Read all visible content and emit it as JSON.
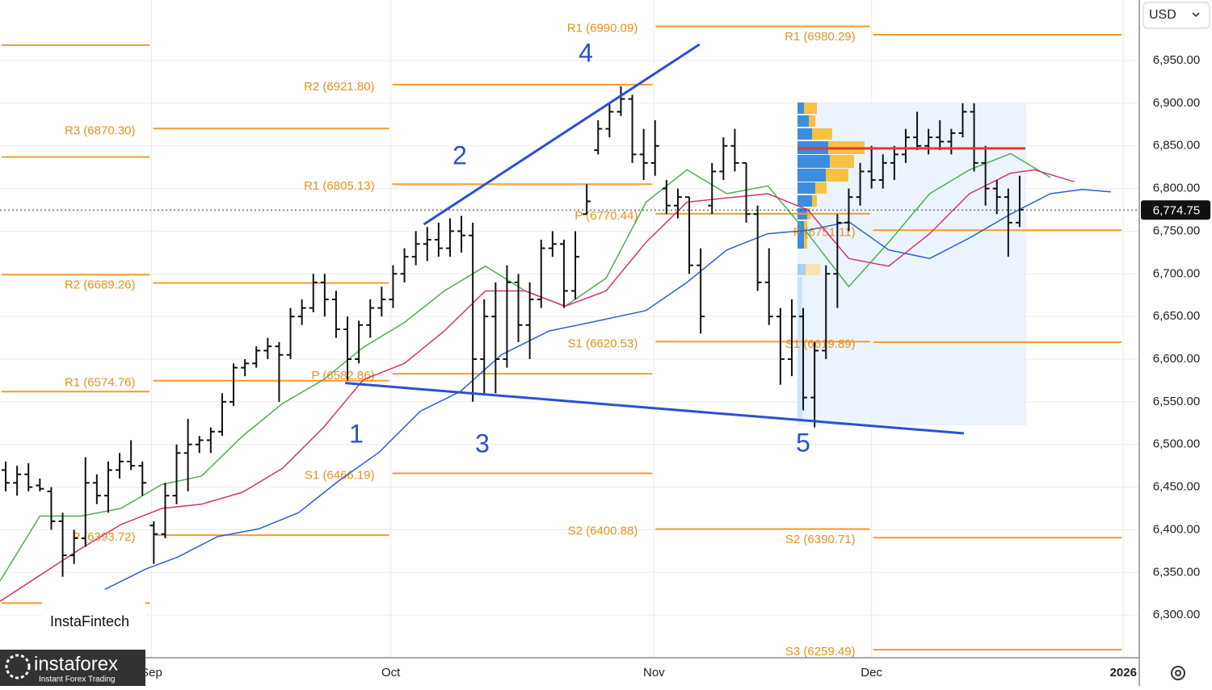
{
  "chart_data": {
    "type": "ohlc",
    "currency": "USD",
    "xlim": [
      0,
      100
    ],
    "ylim": [
      6250,
      7021
    ],
    "xticks": [
      {
        "value": 13.3,
        "label": "Sep"
      },
      {
        "value": 34.3,
        "label": "Oct"
      },
      {
        "value": 57.4,
        "label": "Nov"
      },
      {
        "value": 76.5,
        "label": "Dec"
      },
      {
        "value": 98.6,
        "label": "2026"
      }
    ],
    "yticks": [
      {
        "value": 6300,
        "label": "6,300.00"
      },
      {
        "value": 6350,
        "label": "6,350.00"
      },
      {
        "value": 6400,
        "label": "6,400.00"
      },
      {
        "value": 6450,
        "label": "6,450.00"
      },
      {
        "value": 6500,
        "label": "6,500.00"
      },
      {
        "value": 6550,
        "label": "6,550.00"
      },
      {
        "value": 6600,
        "label": "6,600.00"
      },
      {
        "value": 6650,
        "label": "6,650.00"
      },
      {
        "value": 6700,
        "label": "6,700.00"
      },
      {
        "value": 6750,
        "label": "6,750.00"
      },
      {
        "value": 6800,
        "label": "6,800.00"
      },
      {
        "value": 6850,
        "label": "6,850.00"
      },
      {
        "value": 6900,
        "label": "6,900.00"
      },
      {
        "value": 6950,
        "label": "6,950.00"
      }
    ],
    "grid": true,
    "last_price": {
      "value": 6774.75,
      "label": "6,774.75"
    },
    "series": [
      {
        "color": "#111111",
        "x": [
          0.5,
          1.5,
          2.5,
          3.5,
          4.5,
          5.5,
          6.5,
          7.5,
          8.5,
          9.5,
          10.5,
          11.5,
          12.5,
          13.5,
          14.5,
          15.5,
          16.5,
          17.5,
          18.5,
          19.5,
          20.5,
          21.5,
          22.5,
          23.5,
          24.5,
          25.5,
          26.5,
          27.5,
          28.5,
          29.5,
          30.5,
          31.5,
          32.5,
          33.5,
          34.5,
          35.5,
          36.5,
          37.5,
          38.5,
          39.5,
          40.5,
          41.5,
          42.5,
          43.5,
          44.5,
          45.5,
          46.5,
          47.5,
          48.5,
          49.5,
          50.5,
          51.5,
          52.5,
          53.5,
          54.5,
          55.5,
          56.5,
          57.5,
          58.5,
          59.5,
          60.5,
          61.5,
          62.5,
          63.5,
          64.5,
          65.5,
          66.5,
          67.5,
          68.5,
          69.5,
          70.5,
          71.5,
          72.5,
          73.5,
          74.5,
          75.5,
          76.5,
          77.5,
          78.5,
          79.5,
          80.5,
          81.5,
          82.5,
          83.5,
          84.5,
          85.5,
          86.5,
          87.5,
          88.5,
          89.5
        ],
        "values": [
          [
            6470,
            6480,
            6445,
            6455
          ],
          [
            6455,
            6475,
            6440,
            6465
          ],
          [
            6465,
            6478,
            6445,
            6450
          ],
          [
            6452,
            6460,
            6445,
            6448
          ],
          [
            6445,
            6450,
            6400,
            6410
          ],
          [
            6410,
            6420,
            6345,
            6370
          ],
          [
            6370,
            6400,
            6360,
            6390
          ],
          [
            6390,
            6485,
            6380,
            6455
          ],
          [
            6455,
            6465,
            6430,
            6440
          ],
          [
            6440,
            6480,
            6420,
            6470
          ],
          [
            6470,
            6490,
            6460,
            6480
          ],
          [
            6480,
            6505,
            6470,
            6475
          ],
          [
            6475,
            6480,
            6440,
            6455
          ],
          [
            6405,
            6410,
            6360,
            6395
          ],
          [
            6395,
            6455,
            6390,
            6440
          ],
          [
            6440,
            6500,
            6430,
            6490
          ],
          [
            6490,
            6530,
            6445,
            6500
          ],
          [
            6500,
            6510,
            6490,
            6505
          ],
          [
            6505,
            6520,
            6490,
            6515
          ],
          [
            6515,
            6560,
            6510,
            6550
          ],
          [
            6550,
            6595,
            6545,
            6590
          ],
          [
            6590,
            6600,
            6580,
            6595
          ],
          [
            6595,
            6615,
            6590,
            6610
          ],
          [
            6610,
            6625,
            6600,
            6615
          ],
          [
            6615,
            6620,
            6550,
            6605
          ],
          [
            6605,
            6660,
            6600,
            6650
          ],
          [
            6650,
            6670,
            6640,
            6660
          ],
          [
            6660,
            6700,
            6655,
            6690
          ],
          [
            6690,
            6700,
            6650,
            6670
          ],
          [
            6670,
            6680,
            6625,
            6635
          ],
          [
            6635,
            6650,
            6575,
            6600
          ],
          [
            6600,
            6645,
            6595,
            6640
          ],
          [
            6640,
            6670,
            6625,
            6660
          ],
          [
            6660,
            6685,
            6650,
            6670
          ],
          [
            6670,
            6710,
            6660,
            6700
          ],
          [
            6700,
            6730,
            6690,
            6720
          ],
          [
            6720,
            6750,
            6710,
            6735
          ],
          [
            6735,
            6755,
            6715,
            6740
          ],
          [
            6740,
            6760,
            6720,
            6730
          ],
          [
            6730,
            6765,
            6720,
            6750
          ],
          [
            6750,
            6768,
            6725,
            6745
          ],
          [
            6745,
            6760,
            6550,
            6600
          ],
          [
            6600,
            6670,
            6560,
            6650
          ],
          [
            6650,
            6690,
            6560,
            6600
          ],
          [
            6600,
            6710,
            6590,
            6690
          ],
          [
            6690,
            6700,
            6620,
            6640
          ],
          [
            6640,
            6690,
            6600,
            6670
          ],
          [
            6670,
            6740,
            6660,
            6730
          ],
          [
            6730,
            6750,
            6720,
            6735
          ],
          [
            6735,
            6740,
            6660,
            6680
          ],
          [
            6680,
            6750,
            6670,
            6720
          ],
          [
            6770,
            6805,
            6770,
            6785
          ],
          [
            6845,
            6880,
            6840,
            6870
          ],
          [
            6870,
            6900,
            6860,
            6890
          ],
          [
            6890,
            6920,
            6885,
            6905
          ],
          [
            6905,
            6910,
            6830,
            6840
          ],
          [
            6840,
            6870,
            6810,
            6830
          ],
          [
            6830,
            6880,
            6815,
            6850
          ],
          [
            6800,
            6810,
            6770,
            6780
          ],
          [
            6780,
            6800,
            6765,
            6790
          ],
          [
            6790,
            6790,
            6700,
            6710
          ],
          [
            6710,
            6730,
            6630,
            6650
          ],
          [
            6780,
            6830,
            6770,
            6820
          ],
          [
            6820,
            6860,
            6810,
            6850
          ],
          [
            6850,
            6870,
            6820,
            6830
          ],
          [
            6830,
            6830,
            6760,
            6770
          ],
          [
            6770,
            6780,
            6680,
            6690
          ],
          [
            6690,
            6730,
            6640,
            6650
          ],
          [
            6650,
            6660,
            6570,
            6600
          ],
          [
            6600,
            6670,
            6580,
            6650
          ],
          [
            6650,
            6660,
            6540,
            6555
          ],
          [
            6555,
            6620,
            6520,
            6610
          ],
          [
            6610,
            6710,
            6600,
            6700
          ],
          [
            6700,
            6770,
            6660,
            6760
          ],
          [
            6760,
            6800,
            6750,
            6790
          ],
          [
            6790,
            6830,
            6780,
            6820
          ],
          [
            6820,
            6850,
            6800,
            6810
          ],
          [
            6810,
            6840,
            6800,
            6830
          ],
          [
            6830,
            6850,
            6810,
            6840
          ],
          [
            6840,
            6870,
            6830,
            6860
          ],
          [
            6860,
            6890,
            6845,
            6850
          ],
          [
            6850,
            6870,
            6840,
            6860
          ],
          [
            6860,
            6880,
            6845,
            6855
          ],
          [
            6855,
            6870,
            6840,
            6865
          ],
          [
            6865,
            6900,
            6860,
            6890
          ],
          [
            6890,
            6900,
            6820,
            6830
          ],
          [
            6830,
            6850,
            6780,
            6800
          ],
          [
            6800,
            6810,
            6770,
            6790
          ],
          [
            6790,
            6800,
            6720,
            6760
          ],
          [
            6760,
            6815,
            6755,
            6775
          ]
        ]
      }
    ],
    "moving_averages": [
      {
        "color": "#4caf50",
        "x": [
          0,
          3.5,
          7.1,
          10.6,
          14.2,
          17.7,
          21.3,
          24.8,
          28.4,
          31.9,
          35.5,
          39,
          42.6,
          46.1,
          49.6,
          53.2,
          56.7,
          60.3,
          63.8,
          67.4,
          70.9,
          74.5,
          78,
          81.6,
          85.1,
          88.7,
          92.2
        ],
        "values": [
          6340,
          6416,
          6416,
          6425,
          6453,
          6463,
          6510,
          6548,
          6576,
          6614,
          6643,
          6680,
          6709,
          6680,
          6662,
          6695,
          6784,
          6822,
          6794,
          6803,
          6747,
          6685,
          6737,
          6794,
          6822,
          6841,
          6813
        ]
      },
      {
        "color": "#d6336c",
        "x": [
          0,
          7.1,
          10.6,
          14.2,
          17.7,
          21.3,
          24.8,
          28.4,
          31.9,
          35.5,
          39,
          42.6,
          46.1,
          49.6,
          53.2,
          56.7,
          60.3,
          63.8,
          67.4,
          70.9,
          74.5,
          78,
          81.6,
          85.1,
          88.7,
          90.8,
          94.3
        ],
        "values": [
          6316,
          6378,
          6406,
          6425,
          6430,
          6444,
          6472,
          6520,
          6576,
          6595,
          6633,
          6680,
          6680,
          6662,
          6680,
          6737,
          6784,
          6789,
          6794,
          6775,
          6718,
          6709,
          6747,
          6794,
          6818,
          6822,
          6808
        ]
      },
      {
        "color": "#2f5fd0",
        "x": [
          9.2,
          12.8,
          15.6,
          19.1,
          22.7,
          26.2,
          29.8,
          33.3,
          36.9,
          40.4,
          44,
          48.2,
          51.8,
          56.7,
          60.3,
          63.8,
          67.4,
          70.9,
          74.5,
          78,
          81.6,
          85.1,
          88.7,
          92.2,
          95,
          97.5
        ],
        "values": [
          6330,
          6354,
          6368,
          6392,
          6401,
          6420,
          6458,
          6491,
          6539,
          6562,
          6605,
          6633,
          6643,
          6657,
          6690,
          6728,
          6747,
          6751,
          6761,
          6728,
          6718,
          6742,
          6770,
          6794,
          6799,
          6796
        ]
      }
    ],
    "pivot_levels": [
      {
        "label": null,
        "value": 6968,
        "x": [
          0,
          13.3
        ]
      },
      {
        "label": null,
        "value": 6837,
        "x": [
          0,
          13.3
        ]
      },
      {
        "label": null,
        "value": 6699,
        "x": [
          0,
          13.3
        ]
      },
      {
        "label": null,
        "value": 6562,
        "x": [
          0,
          13.3
        ]
      },
      {
        "label": null,
        "value": 6314,
        "x": [
          0,
          13.3
        ]
      },
      {
        "label": "R3 (6870.30)",
        "value": 6870.3,
        "x": [
          13.3,
          34.3
        ]
      },
      {
        "label": "R2 (6689.26)",
        "value": 6689.26,
        "x": [
          13.3,
          34.3
        ]
      },
      {
        "label": "R1 (6574.76)",
        "value": 6574.76,
        "x": [
          13.3,
          34.3
        ]
      },
      {
        "label": "P (6393.72)",
        "value": 6393.72,
        "x": [
          13.3,
          34.3
        ]
      },
      {
        "label": "R2 (6921.80)",
        "value": 6921.8,
        "x": [
          34.3,
          57.4
        ]
      },
      {
        "label": "R1 (6805.13)",
        "value": 6805.13,
        "x": [
          34.3,
          57.4
        ]
      },
      {
        "label": "P (6582.86)",
        "value": 6582.86,
        "x": [
          34.3,
          57.4
        ]
      },
      {
        "label": "S1 (6466.19)",
        "value": 6466.19,
        "x": [
          34.3,
          57.4
        ]
      },
      {
        "label": "R1 (6990.09)",
        "value": 6990.09,
        "x": [
          57.4,
          76.5
        ]
      },
      {
        "label": "P (6770.44)",
        "value": 6770.44,
        "x": [
          57.4,
          76.5
        ]
      },
      {
        "label": "S1 (6620.53)",
        "value": 6620.53,
        "x": [
          57.4,
          76.5
        ]
      },
      {
        "label": "S2 (6400.88)",
        "value": 6400.88,
        "x": [
          57.4,
          76.5
        ]
      },
      {
        "label": "R1 (6980.29)",
        "value": 6980.29,
        "x": [
          76.5,
          98.6
        ]
      },
      {
        "label": "P (6751.11)",
        "value": 6751.11,
        "x": [
          76.5,
          98.6
        ]
      },
      {
        "label": "S1 (6619.89)",
        "value": 6619.89,
        "x": [
          76.5,
          98.6
        ]
      },
      {
        "label": "S2 (6390.71)",
        "value": 6390.71,
        "x": [
          76.5,
          98.6
        ]
      },
      {
        "label": "S3 (6259.49)",
        "value": 6259.49,
        "x": [
          76.5,
          98.6
        ]
      }
    ],
    "trendlines": [
      {
        "color": "#2c4fd6",
        "x": [
          37.2,
          61.4
        ],
        "y": [
          6758,
          6969
        ]
      },
      {
        "color": "#2c4fd6",
        "x": [
          30.3,
          84.6
        ],
        "y": [
          6572,
          6513
        ]
      }
    ],
    "point_of_control": {
      "color": "#e53935",
      "value": 6847,
      "x": [
        70,
        90
      ]
    },
    "wave_labels": [
      "1",
      "2",
      "3",
      "4",
      "5"
    ]
  },
  "branding": {
    "fintech": "InstaFintech",
    "logo": "instaforex",
    "tagline": "Instant Forex Trading"
  }
}
